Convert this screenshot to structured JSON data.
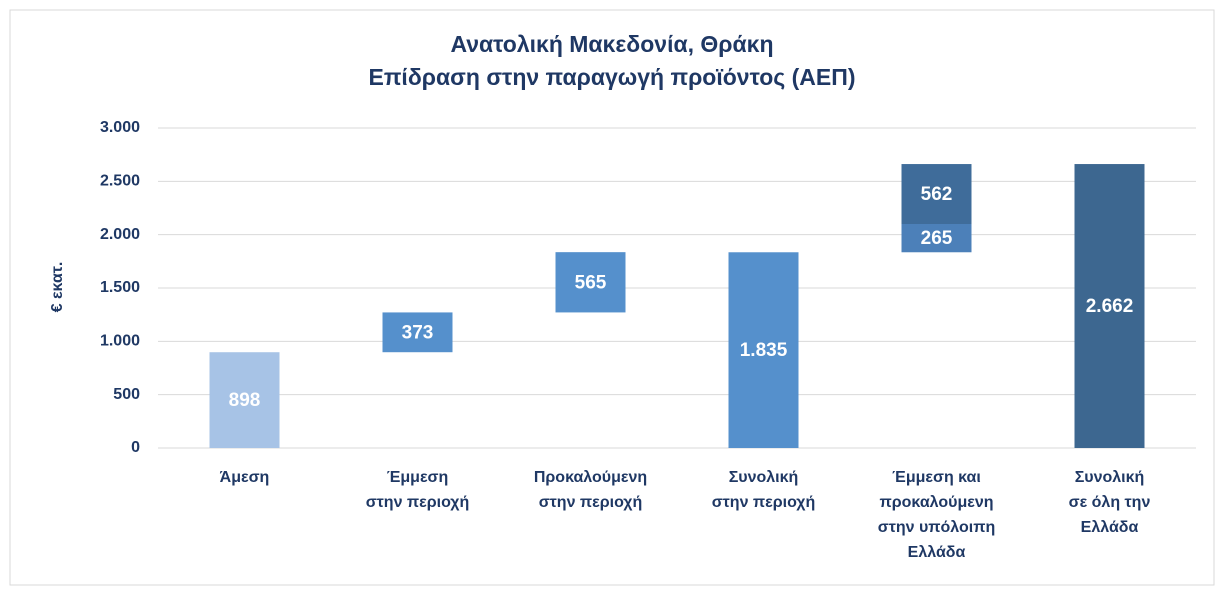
{
  "chart_data": {
    "type": "waterfall",
    "title": [
      "Ανατολική Μακεδονία, Θράκη",
      "Επίδραση στην παραγωγή προϊόντος (ΑΕΠ)"
    ],
    "y_label": "€ εκατ.",
    "categories": [
      [
        "Άμεση"
      ],
      [
        "Έμμεση",
        "στην περιοχή"
      ],
      [
        "Προκαλούμενη",
        "στην περιοχή"
      ],
      [
        "Συνολική",
        "στην περιοχή"
      ],
      [
        "Έμμεση και",
        "προκαλούμενη",
        "στην υπόλοιπη",
        "Ελλάδα"
      ],
      [
        "Συνολική",
        "σε όλη την",
        "Ελλάδα"
      ]
    ],
    "values": [
      [
        898
      ],
      [
        373
      ],
      [
        565
      ],
      [
        1835
      ],
      [
        265,
        562
      ],
      [
        2662
      ]
    ],
    "value_labels": [
      [
        "898"
      ],
      [
        "373"
      ],
      [
        "565"
      ],
      [
        "1.835"
      ],
      [
        "265",
        "562"
      ],
      [
        "2.662"
      ]
    ],
    "totals": [
      false,
      false,
      false,
      true,
      false,
      true
    ],
    "colors": [
      [
        "#a7c3e6"
      ],
      [
        "#5590cc"
      ],
      [
        "#5590cc"
      ],
      [
        "#5590cc"
      ],
      [
        "#4c80b9",
        "#3f6c9a"
      ],
      [
        "#3d6790"
      ]
    ],
    "ylim": [
      0,
      3000
    ],
    "yticks": [
      0,
      500,
      {
        "value": 1000,
        "label": "1.000"
      },
      {
        "value": 1500,
        "label": "1.500"
      },
      {
        "value": 2000,
        "label": "2.000"
      },
      {
        "value": 2500,
        "label": "2.500"
      },
      {
        "value": 3000,
        "label": "3.000"
      }
    ],
    "grid": true
  }
}
